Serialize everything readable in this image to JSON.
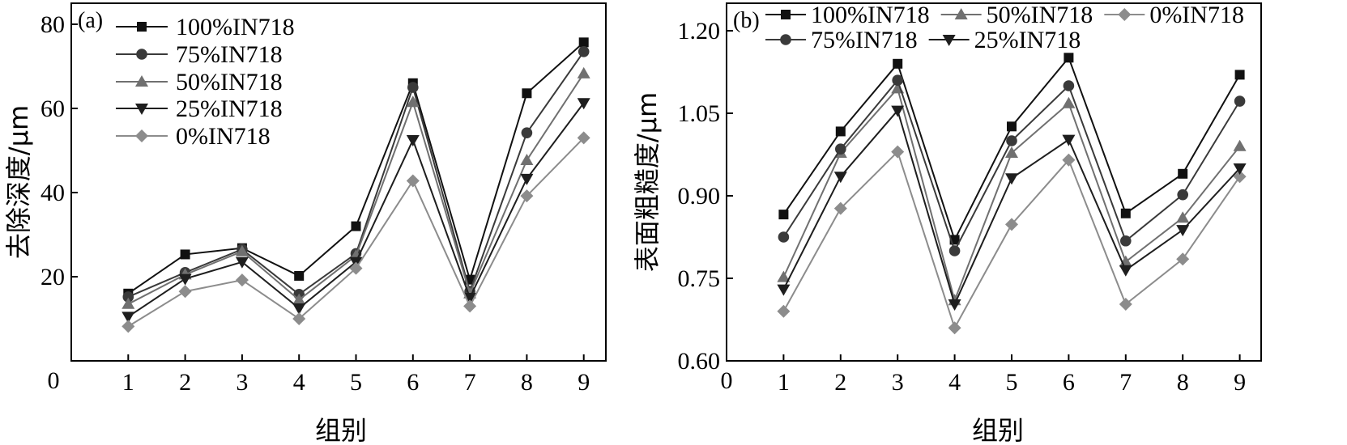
{
  "chart_data": [
    {
      "type": "line",
      "panel_label": "(a)",
      "xlabel": "组别",
      "ylabel": "去除深度/μm",
      "categories": [
        "1",
        "2",
        "3",
        "4",
        "5",
        "6",
        "7",
        "8",
        "9"
      ],
      "x_axis_origin_label": "0",
      "ylim": [
        0,
        85
      ],
      "y_ticks": [
        "20",
        "40",
        "60",
        "80"
      ],
      "legend_position": "top-left",
      "grid": false,
      "series": [
        {
          "name": "100%IN718",
          "marker": "square",
          "color": "#111111",
          "values": [
            16.0,
            25.3,
            26.8,
            20.2,
            32.0,
            66.0,
            19.3,
            63.6,
            75.7
          ]
        },
        {
          "name": "75%IN718",
          "marker": "circle",
          "color": "#3a3a3a",
          "values": [
            15.2,
            21.0,
            26.5,
            15.8,
            25.5,
            65.0,
            16.5,
            54.2,
            73.5
          ]
        },
        {
          "name": "50%IN718",
          "marker": "triangle-up",
          "color": "#707070",
          "values": [
            13.5,
            20.5,
            26.0,
            14.5,
            25.0,
            61.5,
            16.0,
            47.7,
            68.3
          ]
        },
        {
          "name": "25%IN718",
          "marker": "triangle-down",
          "color": "#1e1e1e",
          "values": [
            10.5,
            19.5,
            23.5,
            12.5,
            23.5,
            52.5,
            15.0,
            43.3,
            61.3
          ]
        },
        {
          "name": "0%IN718",
          "marker": "diamond",
          "color": "#8c8c8c",
          "values": [
            8.2,
            16.5,
            19.2,
            10.0,
            22.0,
            42.8,
            13.0,
            39.2,
            53.0
          ]
        }
      ]
    },
    {
      "type": "line",
      "panel_label": "(b)",
      "xlabel": "组别",
      "ylabel": "表面粗糙度/μm",
      "categories": [
        "1",
        "2",
        "3",
        "4",
        "5",
        "6",
        "7",
        "8",
        "9"
      ],
      "x_axis_origin_label": "0",
      "ylim": [
        0.6,
        1.25
      ],
      "y_ticks": [
        "0.60",
        "0.75",
        "0.90",
        "1.05",
        "1.20"
      ],
      "legend_position": "top",
      "grid": false,
      "series": [
        {
          "name": "100%IN718",
          "marker": "square",
          "color": "#111111",
          "values": [
            0.866,
            1.017,
            1.14,
            0.82,
            1.026,
            1.151,
            0.868,
            0.94,
            1.12
          ]
        },
        {
          "name": "50%IN718",
          "marker": "triangle-up",
          "color": "#707070",
          "values": [
            0.752,
            0.978,
            1.095,
            0.71,
            0.978,
            1.068,
            0.78,
            0.86,
            0.99
          ]
        },
        {
          "name": "0%IN718",
          "marker": "diamond",
          "color": "#8c8c8c",
          "values": [
            0.69,
            0.877,
            0.98,
            0.66,
            0.848,
            0.965,
            0.703,
            0.785,
            0.935
          ]
        },
        {
          "name": "75%IN718",
          "marker": "circle",
          "color": "#3a3a3a",
          "values": [
            0.825,
            0.985,
            1.11,
            0.8,
            1.0,
            1.1,
            0.818,
            0.902,
            1.072
          ]
        },
        {
          "name": "25%IN718",
          "marker": "triangle-down",
          "color": "#1e1e1e",
          "values": [
            0.73,
            0.935,
            1.055,
            0.703,
            0.932,
            1.002,
            0.765,
            0.838,
            0.95
          ]
        }
      ]
    }
  ]
}
